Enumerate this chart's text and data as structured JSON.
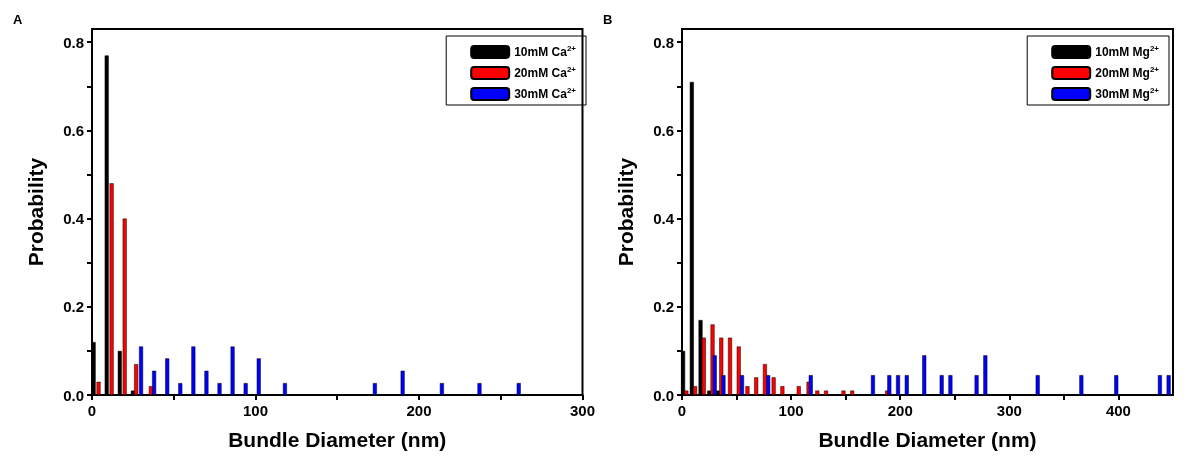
{
  "chart_data": [
    {
      "type": "bar",
      "title": "A",
      "xlabel": "Bundle Diameter (nm)",
      "ylabel": "Probability",
      "xlim": [
        0,
        300
      ],
      "xticks": [
        0,
        {
          "value": 50,
          "label": null
        },
        100,
        {
          "value": 150,
          "label": null
        },
        200,
        {
          "value": 250,
          "label": null
        },
        300
      ],
      "ylim": [
        0,
        0.83
      ],
      "yticks": [
        {
          "value": 0,
          "label": "0.0"
        },
        {
          "value": 0.1,
          "label": null
        },
        0.2,
        {
          "value": 0.3,
          "label": null
        },
        0.4,
        {
          "value": 0.5,
          "label": null
        },
        0.6,
        {
          "value": 0.7,
          "label": null
        },
        0.8
      ],
      "grid": false,
      "legend": "top right",
      "series": [
        {
          "name": "10mM Ca$^{2+}$",
          "color": "#000000",
          "x": [
            1,
            9,
            17,
            25
          ],
          "values": [
            0.12,
            0.77,
            0.1,
            0.01
          ]
        },
        {
          "name": "20mM Ca$^{2+}$",
          "color": "#ff0000",
          "x": [
            4,
            12,
            20,
            27,
            36
          ],
          "values": [
            0.03,
            0.48,
            0.4,
            0.07,
            0.02
          ]
        },
        {
          "name": "30mM Ca$^{2+}$",
          "color": "#0000ff",
          "x": [
            30,
            38,
            46,
            54,
            62,
            70,
            78,
            86,
            94,
            102,
            118,
            173,
            190,
            214,
            237,
            261
          ],
          "values": [
            0.11,
            0.055,
            0.083,
            0.027,
            0.11,
            0.055,
            0.027,
            0.11,
            0.027,
            0.083,
            0.027,
            0.027,
            0.055,
            0.027,
            0.027,
            0.027
          ]
        }
      ]
    },
    {
      "type": "bar",
      "title": "B",
      "xlabel": "Bundle Diameter (nm)",
      "ylabel": "Probability",
      "xlim": [
        0,
        450
      ],
      "xticks": [
        0,
        {
          "value": 50,
          "label": null
        },
        100,
        {
          "value": 150,
          "label": null
        },
        200,
        {
          "value": 250,
          "label": null
        },
        300,
        {
          "value": 350,
          "label": null
        },
        400
      ],
      "ylim": [
        0,
        0.83
      ],
      "yticks": [
        {
          "value": 0,
          "label": "0.0"
        },
        {
          "value": 0.1,
          "label": null
        },
        0.2,
        {
          "value": 0.3,
          "label": null
        },
        0.4,
        {
          "value": 0.5,
          "label": null
        },
        0.6,
        {
          "value": 0.7,
          "label": null
        },
        0.8
      ],
      "grid": false,
      "legend": "top right",
      "series": [
        {
          "name": "10mM Mg$^{2+}$",
          "color": "#000000",
          "x": [
            1,
            9,
            17,
            25,
            33
          ],
          "values": [
            0.1,
            0.71,
            0.17,
            0.01,
            0.01
          ]
        },
        {
          "name": "20mM Mg$^{2+}$",
          "color": "#ff0000",
          "x": [
            4,
            12,
            20,
            28,
            36,
            44,
            52,
            60,
            68,
            76,
            84,
            92,
            107,
            116,
            124,
            132,
            148,
            156,
            188
          ],
          "values": [
            0.01,
            0.02,
            0.13,
            0.16,
            0.13,
            0.13,
            0.11,
            0.02,
            0.04,
            0.07,
            0.04,
            0.02,
            0.02,
            0.03,
            0.01,
            0.01,
            0.01,
            0.01,
            0.01
          ]
        },
        {
          "name": "30mM Mg$^{2+}$",
          "color": "#0000ff",
          "x": [
            30,
            38,
            55,
            79,
            118,
            175,
            190,
            198,
            206,
            222,
            238,
            246,
            270,
            278,
            326,
            366,
            398,
            438,
            446
          ],
          "values": [
            0.09,
            0.045,
            0.045,
            0.045,
            0.045,
            0.045,
            0.045,
            0.045,
            0.045,
            0.09,
            0.045,
            0.045,
            0.045,
            0.09,
            0.045,
            0.045,
            0.045,
            0.045,
            0.045
          ]
        }
      ]
    }
  ]
}
